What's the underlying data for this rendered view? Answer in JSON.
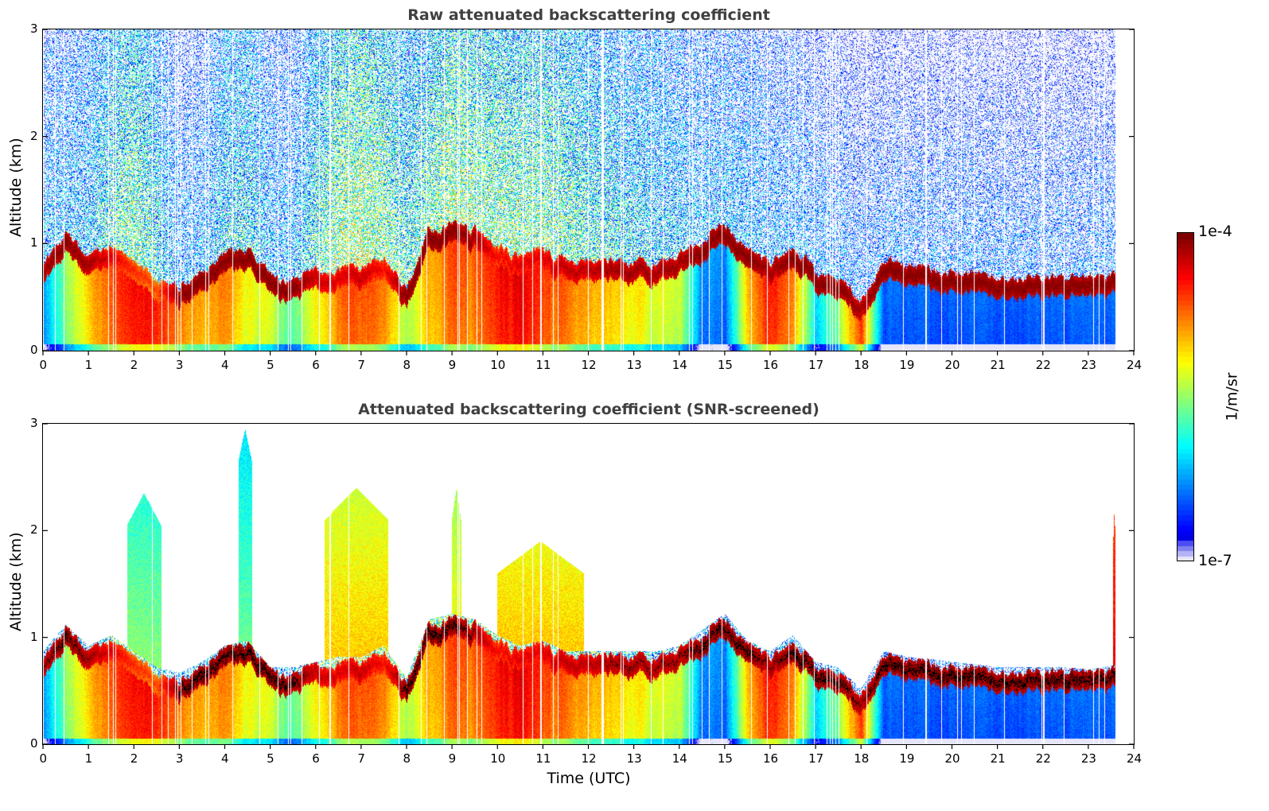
{
  "figure": {
    "colorbar": {
      "label": "1/m/sr",
      "max_label": "1e-4",
      "min_label": "1e-7",
      "log10_range": [
        -7,
        -4
      ],
      "colormap": "jet",
      "low_tint_colors": [
        "#e6e6fa",
        "#b3b3f5",
        "#8080f0",
        "#4d4df5"
      ]
    },
    "xlabel": "Time (UTC)"
  },
  "chart_data": [
    {
      "type": "heatmap",
      "id": "raw",
      "title": "Raw attenuated backscattering coefficient",
      "xlabel": "",
      "ylabel": "Altitude (km)",
      "xlim": [
        0,
        24
      ],
      "ylim": [
        0,
        3
      ],
      "xticks": [
        0,
        1,
        2,
        3,
        4,
        5,
        6,
        7,
        8,
        9,
        10,
        11,
        12,
        13,
        14,
        15,
        16,
        17,
        18,
        19,
        20,
        21,
        22,
        23,
        24
      ],
      "yticks": [
        0,
        1,
        2,
        3
      ],
      "data_end_hour": 23.6,
      "snr_screened": false,
      "value_units": "log10(1/m/sr)",
      "profile": {
        "hours": [
          0,
          0.5,
          1,
          1.5,
          2,
          2.5,
          3,
          3.5,
          4,
          4.5,
          5,
          5.5,
          6,
          6.5,
          7,
          7.5,
          8,
          8.5,
          9,
          9.5,
          10,
          10.5,
          11,
          11.5,
          12,
          12.5,
          13,
          13.5,
          14,
          14.5,
          15,
          15.5,
          16,
          16.5,
          17,
          17.5,
          18,
          18.5,
          19,
          19.5,
          20,
          20.5,
          21,
          21.5,
          22,
          22.5,
          23,
          23.6
        ],
        "layer_top_km": [
          0.75,
          1.0,
          0.8,
          0.9,
          0.75,
          0.6,
          0.55,
          0.65,
          0.8,
          0.85,
          0.6,
          0.6,
          0.65,
          0.7,
          0.7,
          0.8,
          0.5,
          1.05,
          1.1,
          1.05,
          0.9,
          0.8,
          0.85,
          0.75,
          0.75,
          0.75,
          0.75,
          0.75,
          0.8,
          0.95,
          1.1,
          0.85,
          0.75,
          0.9,
          0.65,
          0.6,
          0.4,
          0.75,
          0.7,
          0.68,
          0.65,
          0.63,
          0.6,
          0.6,
          0.6,
          0.6,
          0.58,
          0.62
        ],
        "layer_log10": [
          -4.1,
          -4.0,
          -4.1,
          -4.3,
          -4.5,
          -4.6,
          -4.0,
          -4.0,
          -4.0,
          -4.0,
          -4.0,
          -4.0,
          -4.2,
          -4.3,
          -4.2,
          -4.4,
          -4.0,
          -4.0,
          -4.0,
          -4.1,
          -4.4,
          -4.3,
          -4.3,
          -4.2,
          -4.2,
          -4.1,
          -4.1,
          -4.1,
          -4.1,
          -4.0,
          -4.0,
          -4.0,
          -4.1,
          -4.0,
          -4.0,
          -4.0,
          -4.1,
          -4.0,
          -4.0,
          -4.0,
          -4.0,
          -4.0,
          -4.0,
          -4.0,
          -4.0,
          -4.0,
          -4.0,
          -4.0
        ],
        "boundary_log10": [
          -6.2,
          -5.5,
          -5.0,
          -4.6,
          -4.4,
          -4.4,
          -4.7,
          -4.9,
          -4.8,
          -5.2,
          -5.3,
          -5.6,
          -5.2,
          -4.7,
          -4.6,
          -4.7,
          -5.4,
          -4.9,
          -4.6,
          -4.7,
          -4.4,
          -4.3,
          -4.6,
          -4.7,
          -4.9,
          -5.0,
          -5.1,
          -5.2,
          -5.3,
          -6.2,
          -6.3,
          -5.0,
          -4.4,
          -4.7,
          -6.0,
          -5.5,
          -4.5,
          -6.4,
          -6.4,
          -6.4,
          -6.4,
          -6.4,
          -6.4,
          -6.4,
          -6.4,
          -6.4,
          -6.4,
          -6.4
        ],
        "free_trop_log10": [
          -6.3,
          -6.3,
          -6.2,
          -5.8,
          -5.6,
          -5.9,
          -6.4,
          -6.4,
          -6.0,
          -5.9,
          -6.3,
          -6.3,
          -5.8,
          -5.5,
          -5.4,
          -5.6,
          -5.8,
          -5.7,
          -5.5,
          -5.6,
          -5.6,
          -5.6,
          -5.6,
          -5.7,
          -5.8,
          -5.9,
          -6.0,
          -6.1,
          -6.2,
          -6.3,
          -6.3,
          -6.3,
          -6.4,
          -6.4,
          -6.5,
          -6.5,
          -6.6,
          -6.6,
          -6.6,
          -6.6,
          -6.6,
          -6.6,
          -6.6,
          -6.6,
          -6.6,
          -6.6,
          -6.6,
          -6.6
        ]
      }
    },
    {
      "type": "heatmap",
      "id": "snr",
      "title": "Attenuated backscattering coefficient (SNR-screened)",
      "xlabel": "Time (UTC)",
      "ylabel": "Altitude (km)",
      "xlim": [
        0,
        24
      ],
      "ylim": [
        0,
        3
      ],
      "xticks": [
        0,
        1,
        2,
        3,
        4,
        5,
        6,
        7,
        8,
        9,
        10,
        11,
        12,
        13,
        14,
        15,
        16,
        17,
        18,
        19,
        20,
        21,
        22,
        23,
        24
      ],
      "yticks": [
        0,
        1,
        2,
        3
      ],
      "data_end_hour": 23.6,
      "snr_screened": true,
      "saturated_color": "#000000",
      "value_units": "log10(1/m/sr)",
      "plumes": [
        {
          "hour_start": 1.85,
          "hour_end": 2.6,
          "top_km": 2.35,
          "log10": -5.5
        },
        {
          "hour_start": 4.3,
          "hour_end": 4.6,
          "top_km": 2.95,
          "log10": -5.6
        },
        {
          "hour_start": 6.2,
          "hour_end": 7.6,
          "top_km": 2.4,
          "log10": -5.0
        },
        {
          "hour_start": 9.0,
          "hour_end": 9.2,
          "top_km": 2.4,
          "log10": -5.2
        },
        {
          "hour_start": 10.0,
          "hour_end": 11.9,
          "top_km": 1.9,
          "log10": -5.0
        },
        {
          "hour_start": 23.55,
          "hour_end": 23.6,
          "top_km": 2.2,
          "log10": -4.3
        }
      ]
    }
  ]
}
